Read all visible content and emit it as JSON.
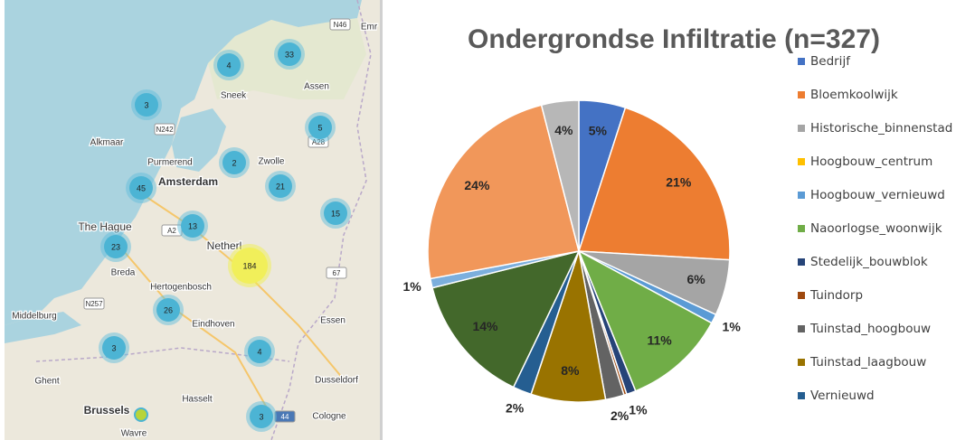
{
  "map": {
    "places": [
      "Sneek",
      "Assen",
      "Alkmaar",
      "Purmerend",
      "Zwolle",
      "Amsterdam",
      "The Hague",
      "Netherl",
      "Breda",
      "Hertogenbosch",
      "Middelburg",
      "Eindhoven",
      "Essen",
      "Dusseldorf",
      "Ghent",
      "Hasselt",
      "Brussels",
      "Cologne",
      "Wavre",
      "Emr"
    ],
    "roads": [
      "N46",
      "N242",
      "A28",
      "A2",
      "67",
      "N257",
      "44"
    ],
    "clusters": [
      "4",
      "33",
      "3",
      "5",
      "2",
      "21",
      "45",
      "13",
      "15",
      "23",
      "184",
      "26",
      "3",
      "4",
      "3"
    ]
  },
  "chart_data": {
    "type": "pie",
    "title": "Ondergrondse Infiltratie (n=327)",
    "legend_names": [
      "Bedrijf",
      "Bloemkoolwijk",
      "Historische_binnenstad",
      "Hoogbouw_centrum",
      "Hoogbouw_vernieuwd",
      "Naoorlogse_woonwijk",
      "Stedelijk_bouwblok",
      "Tuindorp",
      "Tuinstad_hoogbouw",
      "Tuinstad_laagbouw",
      "Vernieuwd"
    ],
    "categories": [
      "Bedrijf",
      "Bloemkoolwijk",
      "Historische_binnenstad",
      "Hoogbouw_centrum",
      "Hoogbouw_vernieuwd",
      "Naoorlogse_woonwijk",
      "Stedelijk_bouwblok",
      "Tuindorp",
      "Tuinstad_hoogbouw",
      "Tuinstad_laagbouw",
      "Vernieuwd",
      null,
      null,
      null,
      null
    ],
    "values": [
      5,
      21,
      6,
      0,
      1,
      11,
      1,
      0.3,
      2,
      8,
      2,
      14,
      1,
      24,
      4
    ],
    "value_labels": [
      "5%",
      "21%",
      "6%",
      null,
      "1%",
      "11%",
      "1%",
      null,
      "2%",
      "8%",
      "2%",
      "14%",
      "1%",
      "24%",
      "4%"
    ],
    "colors": [
      "#4472c4",
      "#ed7d31",
      "#a5a5a5",
      "#ffc000",
      "#5b9bd5",
      "#70ad47",
      "#264478",
      "#9e480e",
      "#636363",
      "#997300",
      "#255e91",
      "#43682b",
      "#7cafdd",
      "#f1975a",
      "#b7b7b7"
    ],
    "legend": "right"
  }
}
